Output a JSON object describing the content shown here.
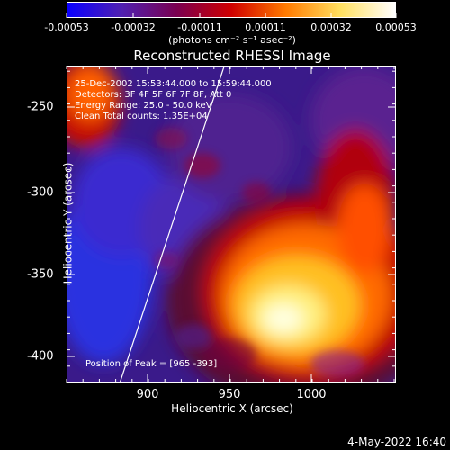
{
  "colorbar": {
    "tick_labels": [
      "-0.00053",
      "-0.00032",
      "-0.00011",
      "0.00011",
      "0.00032",
      "0.00053"
    ],
    "unit_label": "(photons cm⁻² s⁻¹ asec⁻²)",
    "colors": [
      "#0a00ff",
      "#5020b0",
      "#7a0050",
      "#d00000",
      "#ff7a00",
      "#ffe060",
      "#ffffff"
    ]
  },
  "plot": {
    "title": "Reconstructed RHESSI Image",
    "info_lines": [
      "25-Dec-2002 15:53:44.000 to 15:59:44.000",
      "Detectors: 3F 4F 5F 6F 7F 8F, Att 0",
      "Energy Range: 25.0 - 50.0 keV",
      "Clean     Total counts: 1.35E+04"
    ],
    "peak_label": "Position of Peak = [965 -393]",
    "xlabel": "Heliocentric X (arcsec)",
    "ylabel": "Heliocentric Y (arcsec)",
    "x_ticks": [
      "900",
      "950",
      "1000"
    ],
    "y_ticks": [
      "-250",
      "-300",
      "-350",
      "-400"
    ],
    "xlim": [
      860,
      1042
    ],
    "ylim": [
      -417,
      -237
    ]
  },
  "footer": {
    "timestamp": "4-May-2022 16:40"
  }
}
